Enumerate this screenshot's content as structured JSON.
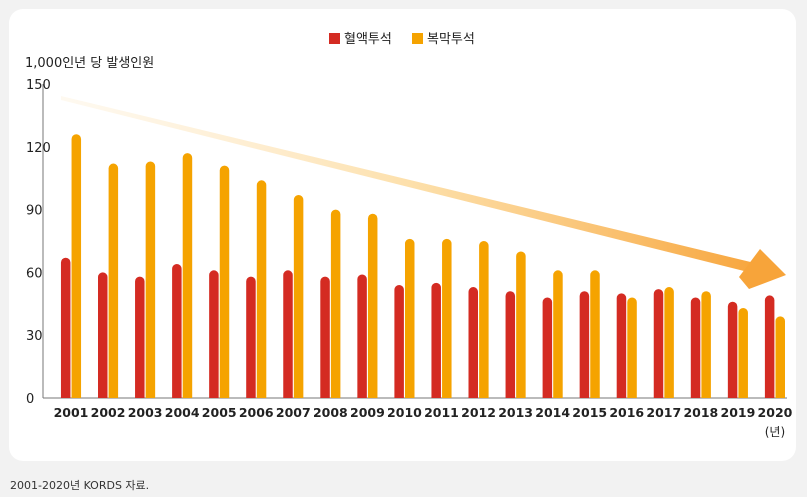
{
  "chart_data": {
    "type": "bar",
    "ylabel": "1,000인년 당 발생인원",
    "x_unit": "(년)",
    "ylim": [
      0,
      150
    ],
    "y_ticks": [
      0,
      30,
      60,
      90,
      120,
      150
    ],
    "categories": [
      "2001",
      "2002",
      "2003",
      "2004",
      "2005",
      "2006",
      "2007",
      "2008",
      "2009",
      "2010",
      "2011",
      "2012",
      "2013",
      "2014",
      "2015",
      "2016",
      "2017",
      "2018",
      "2019",
      "2020"
    ],
    "series": [
      {
        "name": "혈액투석",
        "color": "#d42b22",
        "values": [
          67,
          60,
          58,
          64,
          61,
          58,
          61,
          58,
          59,
          54,
          55,
          53,
          51,
          48,
          51,
          50,
          52,
          48,
          46,
          49
        ]
      },
      {
        "name": "복막투석",
        "color": "#f5a300",
        "values": [
          126,
          112,
          113,
          117,
          111,
          104,
          97,
          90,
          88,
          76,
          76,
          75,
          70,
          61,
          61,
          48,
          53,
          51,
          43,
          39
        ]
      }
    ],
    "legend_position": "top-center",
    "grid": false,
    "annotation": "downward trend arrow"
  },
  "footer": {
    "source": "2001-2020년 KORDS 자료."
  }
}
